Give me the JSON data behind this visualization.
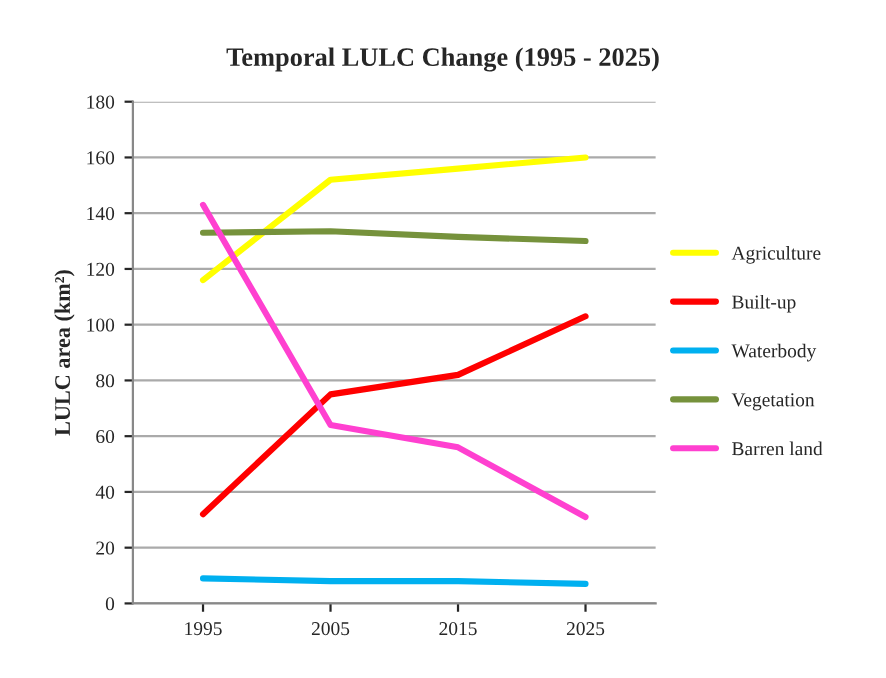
{
  "chart_data": {
    "type": "line",
    "title": "Temporal LULC Change (1995 - 2025)",
    "ylabel": "LULC area (km²)",
    "categories": [
      "1995",
      "2005",
      "2015",
      "2025"
    ],
    "series": [
      {
        "name": "Agriculture",
        "color": "#ffff00",
        "values": [
          116,
          152,
          156,
          160
        ]
      },
      {
        "name": "Built-up",
        "color": "#ff0000",
        "values": [
          32,
          75,
          82,
          103
        ]
      },
      {
        "name": "Waterbody",
        "color": "#00b0f0",
        "values": [
          9,
          8,
          8,
          7
        ]
      },
      {
        "name": "Vegetation",
        "color": "#76923c",
        "values": [
          133,
          133.5,
          131.5,
          130
        ]
      },
      {
        "name": "Barren land",
        "color": "#ff40d0",
        "values": [
          143,
          64,
          56,
          31
        ]
      }
    ],
    "ylim": [
      0,
      180
    ],
    "yticks": [
      0,
      20,
      40,
      60,
      80,
      100,
      120,
      140,
      160,
      180
    ],
    "grid": "y",
    "legend": "right",
    "marker": "none",
    "line_style": "solid"
  }
}
